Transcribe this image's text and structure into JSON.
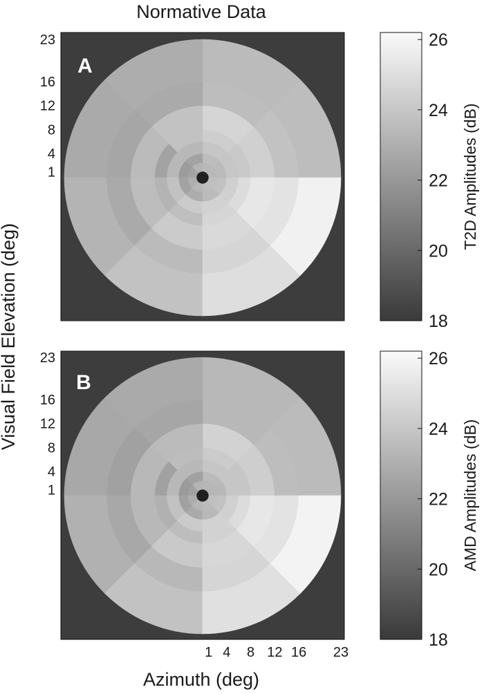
{
  "title": "Normative Data",
  "xlabel": "Azimuth (deg)",
  "ylabel": "Visual Field Elevation (deg)",
  "colors": {
    "background": "#3d3d3d",
    "fovea": "#202020",
    "frame": "#111111"
  },
  "chart_data": [
    {
      "type": "heatmap",
      "panel": "A",
      "colorbar": {
        "label": "T2D Amplitudes (dB)",
        "range": [
          18,
          26.2
        ],
        "ticks": [
          18,
          20,
          22,
          24,
          26
        ]
      },
      "y_ticks": [
        1,
        4,
        8,
        12,
        16,
        23
      ],
      "x_ticks": [],
      "ring_edges_deg": [
        1,
        2.5,
        4,
        6,
        8,
        12,
        16,
        23
      ],
      "sectors": [
        "right-upper",
        "upper-right",
        "upper-left",
        "left-upper",
        "left-lower",
        "lower-left",
        "lower-right",
        "right-lower"
      ],
      "values_dB": [
        [
          23.4,
          23.4,
          23.2,
          22.5,
          23.0,
          23.3,
          23.6,
          23.7
        ],
        [
          23.5,
          23.6,
          22.5,
          22.2,
          22.5,
          22.9,
          23.5,
          23.8
        ],
        [
          24.0,
          24.0,
          23.4,
          23.4,
          23.8,
          24.2,
          24.5,
          24.4
        ],
        [
          24.1,
          24.3,
          23.8,
          22.5,
          23.2,
          23.7,
          24.6,
          24.9
        ],
        [
          24.4,
          24.6,
          23.8,
          23.5,
          23.6,
          24.2,
          24.8,
          25.4
        ],
        [
          23.8,
          23.6,
          22.8,
          22.6,
          22.8,
          23.5,
          24.6,
          25.2
        ],
        [
          23.6,
          23.5,
          22.9,
          22.8,
          23.2,
          23.8,
          25.0,
          25.8
        ],
        [
          23.8,
          23.7,
          23.4,
          23.3,
          23.7,
          24.2,
          25.2,
          26.1
        ]
      ]
    },
    {
      "type": "heatmap",
      "panel": "B",
      "colorbar": {
        "label": "AMD Amplitudes (dB)",
        "range": [
          18,
          26.2
        ],
        "ticks": [
          18,
          20,
          22,
          24,
          26
        ]
      },
      "y_ticks": [
        1,
        4,
        8,
        12,
        16,
        23
      ],
      "x_ticks": [
        1,
        4,
        8,
        12,
        16,
        23
      ],
      "ring_edges_deg": [
        1,
        2.5,
        4,
        6,
        8,
        12,
        16,
        23
      ],
      "sectors": [
        "right-upper",
        "upper-right",
        "upper-left",
        "left-upper",
        "left-lower",
        "lower-left",
        "lower-right",
        "right-lower"
      ],
      "values_dB": [
        [
          23.3,
          23.3,
          23.2,
          22.4,
          22.9,
          23.3,
          23.5,
          23.7
        ],
        [
          23.4,
          23.5,
          22.4,
          22.1,
          22.4,
          22.8,
          23.4,
          23.8
        ],
        [
          24.0,
          24.0,
          23.4,
          23.4,
          23.8,
          24.2,
          24.5,
          24.4
        ],
        [
          24.0,
          24.2,
          23.6,
          22.4,
          23.1,
          23.6,
          24.5,
          24.9
        ],
        [
          24.3,
          24.5,
          23.5,
          23.4,
          23.4,
          24.1,
          24.7,
          25.4
        ],
        [
          23.6,
          23.4,
          22.6,
          22.4,
          22.7,
          23.4,
          24.6,
          25.2
        ],
        [
          23.5,
          23.4,
          22.8,
          22.7,
          23.1,
          23.8,
          25.1,
          25.9
        ],
        [
          23.8,
          23.6,
          23.3,
          23.2,
          23.6,
          24.3,
          25.4,
          26.2
        ]
      ]
    }
  ]
}
